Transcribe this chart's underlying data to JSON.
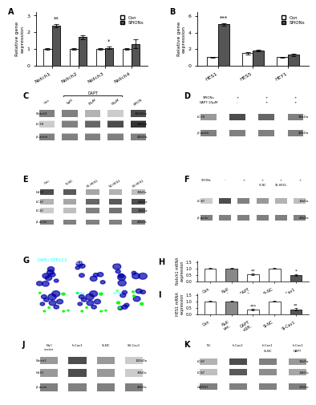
{
  "panel_A": {
    "categories": [
      "Notch1",
      "Notch2",
      "Notch3",
      "Notch4"
    ],
    "con_values": [
      1.0,
      1.0,
      1.0,
      1.0
    ],
    "spions_values": [
      2.4,
      1.7,
      1.05,
      1.3
    ],
    "con_errors": [
      0.05,
      0.05,
      0.05,
      0.05
    ],
    "spions_errors": [
      0.1,
      0.12,
      0.08,
      0.25
    ],
    "ylabel": "Relative gene\nexpression",
    "ylim": [
      0,
      3.2
    ],
    "yticks": [
      0,
      1,
      2,
      3
    ],
    "significance": {
      "Notch1": "**",
      "Notch3": "*"
    },
    "title": "A"
  },
  "panel_B": {
    "categories": [
      "HES1",
      "HES5",
      "HEY1"
    ],
    "con_values": [
      1.0,
      1.5,
      1.0
    ],
    "spions_values": [
      5.0,
      1.8,
      1.3
    ],
    "con_errors": [
      0.05,
      0.12,
      0.05
    ],
    "spions_errors": [
      0.18,
      0.12,
      0.15
    ],
    "ylabel": "Relative gene\nexpression",
    "ylim": [
      0,
      6.5
    ],
    "yticks": [
      0,
      2,
      4,
      6
    ],
    "significance": {
      "HES1": "***"
    },
    "title": "B"
  },
  "panel_H": {
    "categories": [
      "Con",
      "Null\nvector",
      "DAPT+\nSPIONs",
      "Si-NC",
      "Si-Cav1"
    ],
    "con_values": [
      1.0,
      1.0,
      1.0,
      1.0,
      1.0
    ],
    "spions_values": [
      1.0,
      1.0,
      0.55,
      1.0,
      0.5
    ],
    "con_errors": [
      0.05,
      0.05,
      0.05,
      0.05,
      0.05
    ],
    "spions_errors": [
      0.05,
      0.05,
      0.08,
      0.05,
      0.08
    ],
    "ylabel": "Notch1 mRNA\nexpression",
    "ylim": [
      0,
      1.6
    ],
    "yticks": [
      0.0,
      0.5,
      1.0,
      1.5
    ],
    "title": "H"
  },
  "panel_I": {
    "categories": [
      "Con",
      "Null\nvector",
      "DAPT+\nSPIONs",
      "Si-NC",
      "Si-Cav1"
    ],
    "con_values": [
      1.0,
      1.0,
      1.0,
      1.0,
      1.0
    ],
    "spions_values": [
      1.0,
      1.05,
      0.35,
      1.0,
      0.4
    ],
    "con_errors": [
      0.05,
      0.05,
      0.05,
      0.05,
      0.05
    ],
    "spions_errors": [
      0.05,
      0.08,
      0.06,
      0.05,
      0.08
    ],
    "ylabel": "HES1 mRNA\nexpression",
    "ylim": [
      0,
      1.6
    ],
    "yticks": [
      0.0,
      0.5,
      1.0,
      1.5
    ],
    "title": "I"
  },
  "colors": {
    "con": "#ffffff",
    "spions": "#555555",
    "bar_edge": "#000000",
    "text": "#000000",
    "background": "#ffffff",
    "blot_bg": "#e8e8e8",
    "blot_band_dark": "#333333",
    "blot_band_light": "#888888",
    "confocal_bg": "#000033",
    "confocal_dapi": "#0000cc",
    "confocal_gfp": "#00cc00",
    "panel_label_color": "#000000"
  },
  "legend": {
    "con_label": "Con",
    "spions_label": "SPIONs"
  },
  "bar_width": 0.32,
  "figure_bg": "#ffffff"
}
